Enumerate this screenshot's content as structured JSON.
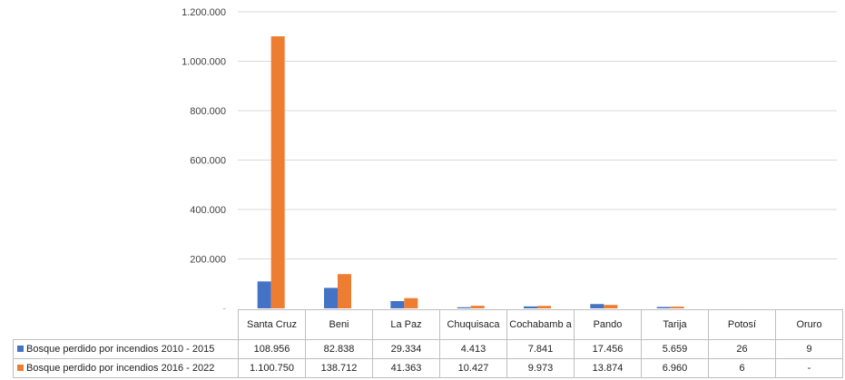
{
  "chart_data": {
    "type": "bar",
    "categories": [
      "Santa Cruz",
      "Beni",
      "La Paz",
      "Chuquisaca",
      "Cochabamba",
      "Pando",
      "Tarija",
      "Potosí",
      "Oruro"
    ],
    "category_labels": [
      "Santa Cruz",
      "Beni",
      "La Paz",
      "Chuquisaca",
      "Cochabamb a",
      "Pando",
      "Tarija",
      "Potosí",
      "Oruro"
    ],
    "ylim": [
      0,
      1200000
    ],
    "yticks": [
      0,
      200000,
      400000,
      600000,
      800000,
      1000000,
      1200000
    ],
    "ytick_labels": [
      "-",
      "200.000",
      "400.000",
      "600.000",
      "800.000",
      "1.000.000",
      "1.200.000"
    ],
    "grid": true,
    "legend": "data-table",
    "series": [
      {
        "name": "Bosque perdido por incendios 2010 - 2015",
        "color": "#4472c4",
        "values": [
          108956,
          82838,
          29334,
          4413,
          7841,
          17456,
          5659,
          26,
          9
        ],
        "value_labels": [
          "108.956",
          "82.838",
          "29.334",
          "4.413",
          "7.841",
          "17.456",
          "5.659",
          "26",
          "9"
        ]
      },
      {
        "name": "Bosque perdido por incendios 2016 - 2022",
        "color": "#ed7d31",
        "values": [
          1100750,
          138712,
          41363,
          10427,
          9973,
          13874,
          6960,
          6,
          0
        ],
        "value_labels": [
          "1.100.750",
          "138.712",
          "41.363",
          "10.427",
          "9.973",
          "13.874",
          "6.960",
          "6",
          "-"
        ]
      }
    ]
  }
}
